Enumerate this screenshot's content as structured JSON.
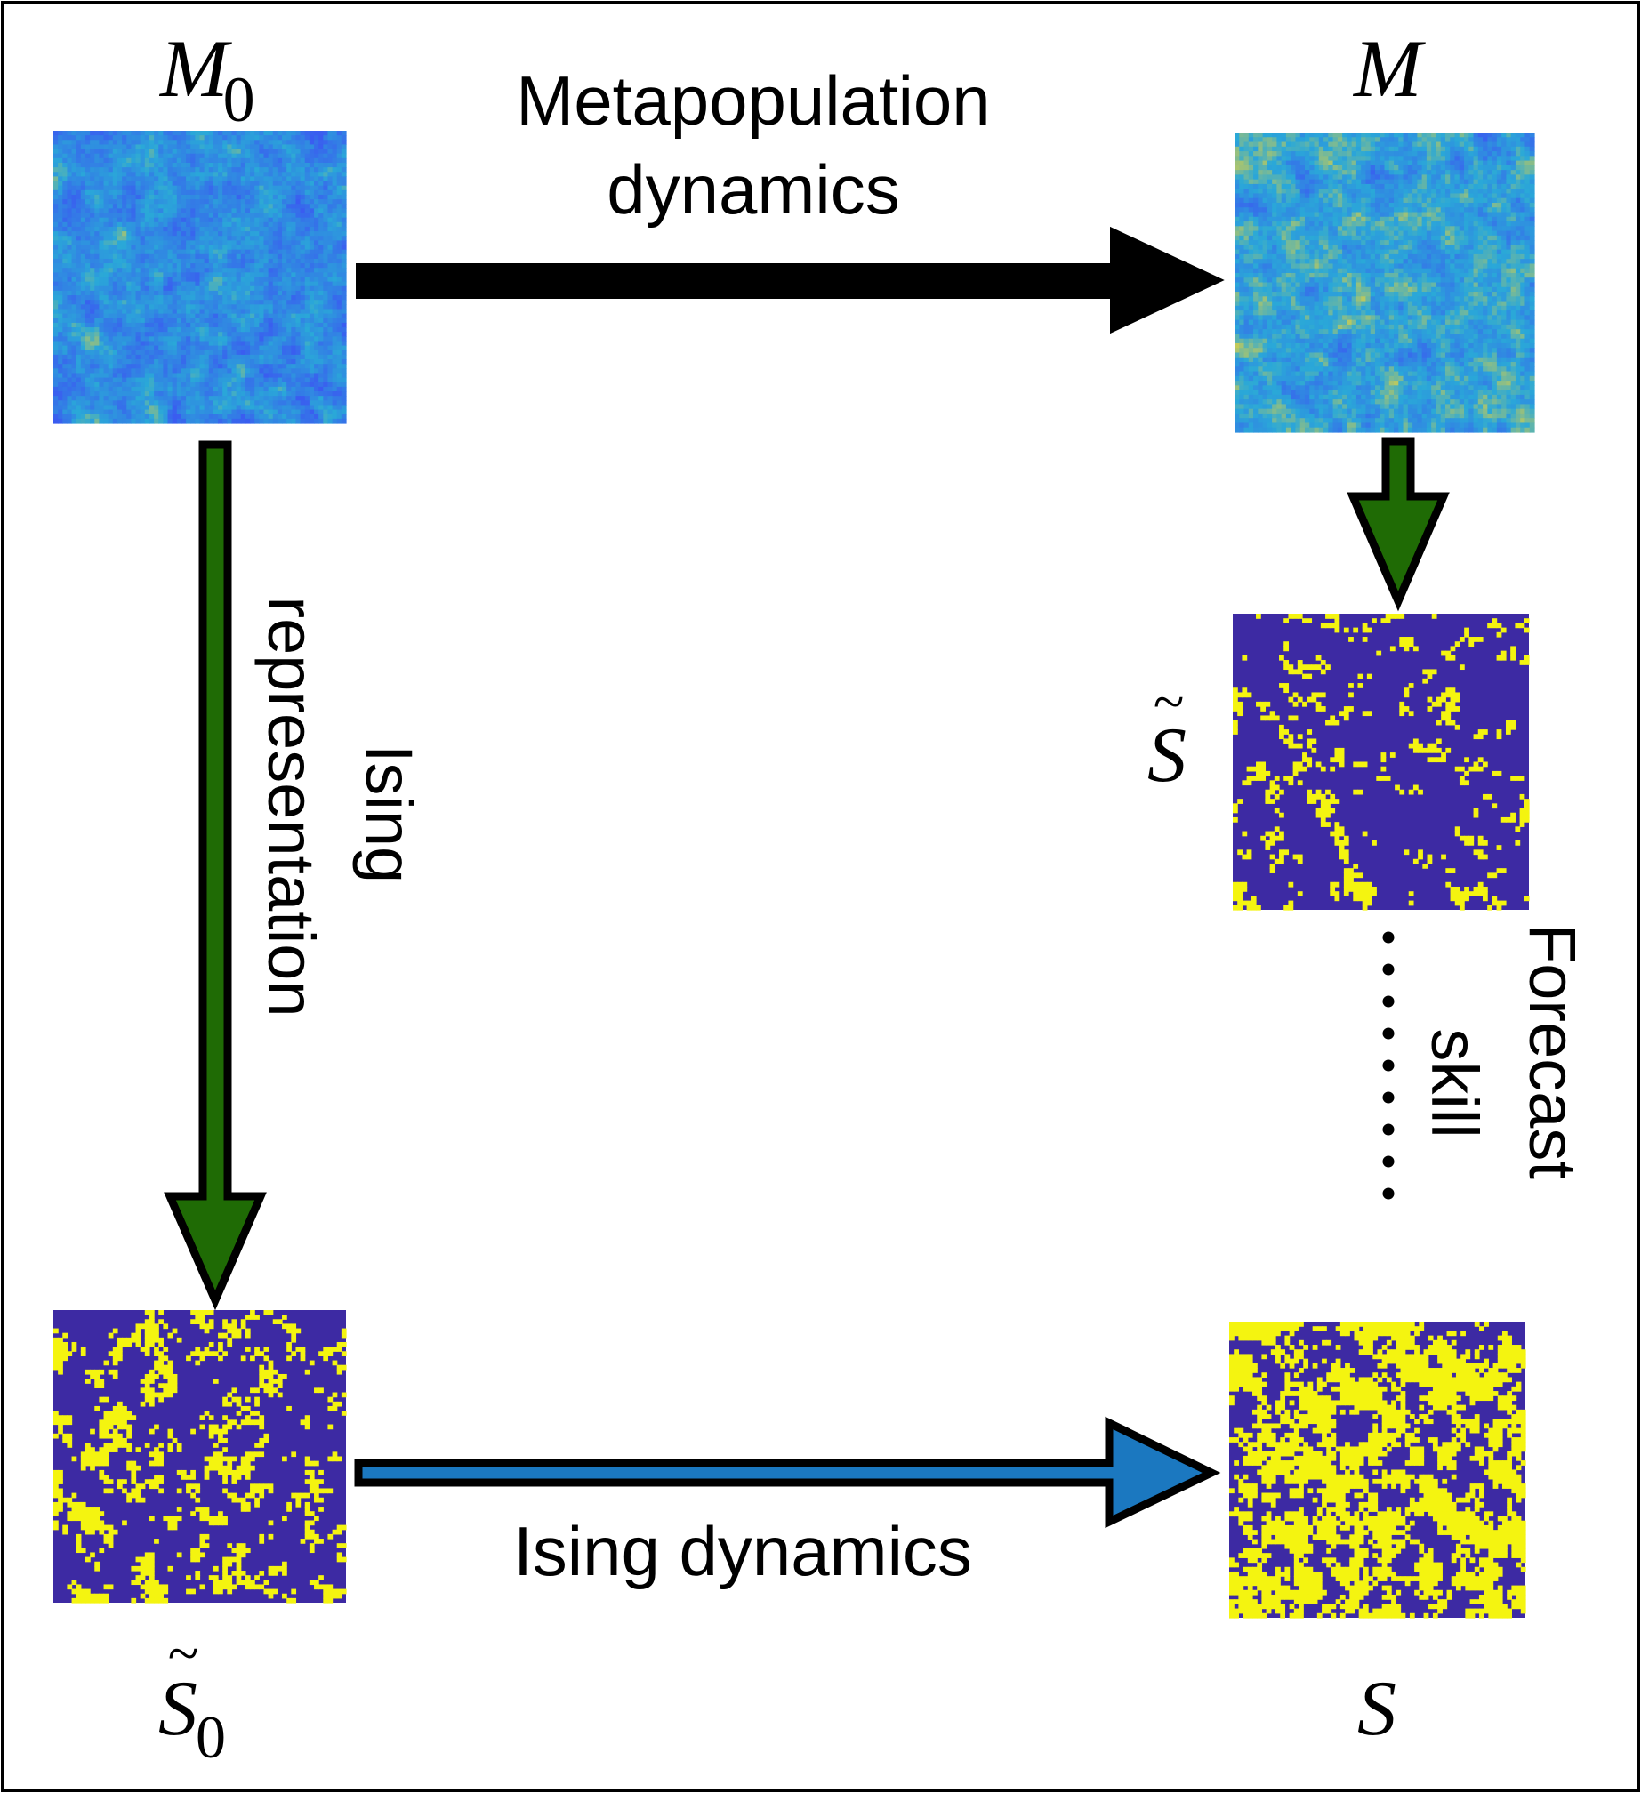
{
  "labels": {
    "m0_main": "M",
    "m0_sub": "0",
    "m_main": "M",
    "s_tilde_main": "S",
    "s_tilde0_main": "S",
    "s_tilde0_sub": "0",
    "s_main": "S",
    "top_arrow_line1": "Metapopulation",
    "top_arrow_line2": "dynamics",
    "left_arrow_line1": "Ising",
    "left_arrow_line2": "representation",
    "bottom_arrow": "Ising dynamics",
    "right_line1": "Forecast",
    "right_line2": "skill"
  },
  "colors": {
    "border": "#000000",
    "metapop_arrow": "#000000",
    "ising_repr_arrow": "#1f6b05",
    "ising_dyn_arrow": "#1b78c0",
    "ising_background": "#3d2aa3",
    "ising_spin": "#f4f410",
    "heatmap_low": "#3a5cf0",
    "heatmap_mid": "#2aa8d8",
    "heatmap_high": "#e8d23a"
  },
  "panels": [
    {
      "id": "M0",
      "kind": "heatmap"
    },
    {
      "id": "M",
      "kind": "heatmap"
    },
    {
      "id": "S_tilde",
      "kind": "ising"
    },
    {
      "id": "S_tilde0",
      "kind": "ising"
    },
    {
      "id": "S",
      "kind": "ising"
    }
  ]
}
